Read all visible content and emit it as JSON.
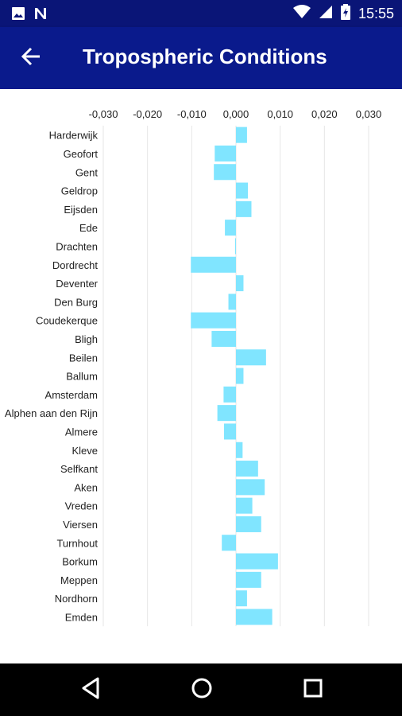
{
  "status_bar": {
    "time": "15:55",
    "icons": [
      "image-icon",
      "n-notification-icon",
      "wifi-icon",
      "cell-signal-icon",
      "battery-charging-icon"
    ]
  },
  "app_bar": {
    "title": "Tropospheric Conditions",
    "back_icon": "arrow-left-icon"
  },
  "colors": {
    "status_bar": "#0a1577",
    "app_bar": "#0a1a8c",
    "bar": "#80e5ff",
    "grid": "#e6e6e6"
  },
  "chart_data": {
    "type": "bar",
    "orientation": "horizontal",
    "xlim": [
      -0.03,
      0.03
    ],
    "ticks": [
      "-0,030",
      "-0,020",
      "-0,010",
      "0,000",
      "0,010",
      "0,020",
      "0,030"
    ],
    "tick_values": [
      -0.03,
      -0.02,
      -0.01,
      0.0,
      0.01,
      0.02,
      0.03
    ],
    "grid": true,
    "categories": [
      "Harderwijk",
      "Geofort",
      "Gent",
      "Geldrop",
      "Eijsden",
      "Ede",
      "Drachten",
      "Dordrecht",
      "Deventer",
      "Den Burg",
      "Coudekerque",
      "Bligh",
      "Beilen",
      "Ballum",
      "Amsterdam",
      "Alphen aan den Rijn",
      "Almere",
      "Kleve",
      "Selfkant",
      "Aken",
      "Vreden",
      "Viersen",
      "Turnhout",
      "Borkum",
      "Meppen",
      "Nordhorn",
      "Emden"
    ],
    "values": [
      0.0025,
      -0.0048,
      -0.005,
      0.0027,
      0.0035,
      -0.0025,
      -0.0002,
      -0.0102,
      0.0017,
      -0.0017,
      -0.0102,
      -0.0055,
      0.0068,
      0.0017,
      -0.0028,
      -0.0042,
      -0.0027,
      0.0015,
      0.005,
      0.0065,
      0.0037,
      0.0057,
      -0.0032,
      0.0095,
      0.0057,
      0.0025,
      0.0082
    ]
  },
  "nav_bar": {
    "back_icon": "triangle-back-icon",
    "home_icon": "circle-home-icon",
    "recents_icon": "square-recents-icon"
  }
}
